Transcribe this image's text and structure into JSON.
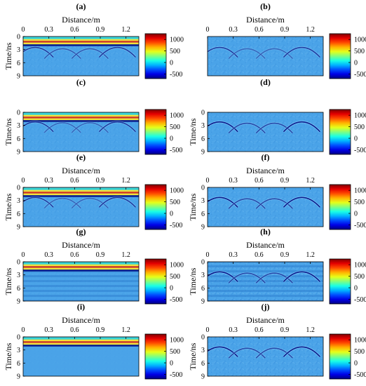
{
  "figure": {
    "rows": 5,
    "columns": 2,
    "colors": {
      "background": "#4aa3e8",
      "speckle_light": "#7cc4f4",
      "speckle_dark": "#2f86d6",
      "hyperbola": "#0a1a8c",
      "hyperbola_halo": "#9fe0ff",
      "band_red": "#d9381e",
      "band_yellow": "#f2e23a",
      "band_cyan": "#39d6d6",
      "band_navy": "#0b1a8a",
      "horizontal_stripe": "#2f7fd0"
    }
  },
  "chart_data": [
    {
      "type": "heatmap",
      "panel_label": "(a)",
      "xlabel": "Distance/m",
      "ylabel": "Time/ns",
      "x_ticks": [
        "0",
        "0.3",
        "0.6",
        "0.9",
        "1.2"
      ],
      "y_ticks": [
        "0",
        "3",
        "6",
        "9"
      ],
      "xlim": [
        0,
        1.35
      ],
      "ylim": [
        9,
        0
      ],
      "colorbar": {
        "min": -700,
        "max": 1250,
        "ticks": [
          "1000",
          "500",
          "0",
          "-500"
        ]
      },
      "direct_wave": true,
      "horizontal_stripes": false,
      "noise": 0.25,
      "hyperbolas": [
        {
          "x": 0.14,
          "t": 2.5,
          "strength": 0.8
        },
        {
          "x": 0.46,
          "t": 2.8,
          "strength": 0.6
        },
        {
          "x": 0.78,
          "t": 2.8,
          "strength": 0.6
        },
        {
          "x": 1.1,
          "t": 2.5,
          "strength": 0.8
        }
      ]
    },
    {
      "type": "heatmap",
      "panel_label": "(b)",
      "xlabel": "Distance/m",
      "ylabel": "",
      "x_ticks": [
        "0",
        "0.3",
        "0.6",
        "0.9",
        "1.2"
      ],
      "y_ticks": [],
      "xlim": [
        0,
        1.35
      ],
      "ylim": [
        9,
        0
      ],
      "colorbar": {
        "min": -700,
        "max": 1250,
        "ticks": [
          "1000",
          "500",
          "0",
          "-500"
        ]
      },
      "direct_wave": false,
      "horizontal_stripes": false,
      "noise": 0.35,
      "hyperbolas": [
        {
          "x": 0.14,
          "t": 2.5,
          "strength": 0.8
        },
        {
          "x": 0.46,
          "t": 2.8,
          "strength": 0.5
        },
        {
          "x": 0.78,
          "t": 2.8,
          "strength": 0.5
        },
        {
          "x": 1.1,
          "t": 2.5,
          "strength": 0.8
        }
      ]
    },
    {
      "type": "heatmap",
      "panel_label": "(c)",
      "xlabel": "",
      "ylabel": "Time/ns",
      "x_ticks": [],
      "y_ticks": [
        "0",
        "3",
        "6",
        "9"
      ],
      "xlim": [
        0,
        1.35
      ],
      "ylim": [
        9,
        0
      ],
      "colorbar": {
        "min": -700,
        "max": 1250,
        "ticks": [
          "1000",
          "500",
          "0",
          "-500"
        ]
      },
      "direct_wave": true,
      "horizontal_stripes": false,
      "noise": 0.25,
      "hyperbolas": [
        {
          "x": 0.14,
          "t": 2.2,
          "strength": 0.8
        },
        {
          "x": 0.46,
          "t": 2.4,
          "strength": 0.5
        },
        {
          "x": 0.78,
          "t": 2.4,
          "strength": 0.5
        },
        {
          "x": 1.1,
          "t": 2.2,
          "strength": 0.8
        }
      ]
    },
    {
      "type": "heatmap",
      "panel_label": "(d)",
      "xlabel": "",
      "ylabel": "Time/ns",
      "x_ticks": [],
      "y_ticks": [
        "0",
        "3",
        "6",
        "9"
      ],
      "xlim": [
        0,
        1.35
      ],
      "ylim": [
        9,
        0
      ],
      "colorbar": {
        "min": -700,
        "max": 1250,
        "ticks": [
          "1000",
          "500",
          "0",
          "-500"
        ]
      },
      "direct_wave": false,
      "horizontal_stripes": false,
      "noise": 0.35,
      "hyperbolas": [
        {
          "x": 0.14,
          "t": 2.2,
          "strength": 1.0
        },
        {
          "x": 0.46,
          "t": 2.5,
          "strength": 0.7
        },
        {
          "x": 0.78,
          "t": 2.5,
          "strength": 0.7
        },
        {
          "x": 1.1,
          "t": 2.2,
          "strength": 1.0
        }
      ]
    },
    {
      "type": "heatmap",
      "panel_label": "(e)",
      "xlabel": "Distance/m",
      "ylabel": "Time/ns",
      "x_ticks": [
        "0",
        "0.3",
        "0.6",
        "0.9",
        "1.2"
      ],
      "y_ticks": [
        "0",
        "3",
        "6",
        "9"
      ],
      "xlim": [
        0,
        1.35
      ],
      "ylim": [
        9,
        0
      ],
      "colorbar": {
        "min": -700,
        "max": 1250,
        "ticks": [
          "1000",
          "500",
          "0",
          "-500"
        ]
      },
      "direct_wave": true,
      "horizontal_stripes": false,
      "noise": 0.25,
      "hyperbolas": [
        {
          "x": 0.14,
          "t": 2.3,
          "strength": 0.8
        },
        {
          "x": 0.46,
          "t": 2.5,
          "strength": 0.5
        },
        {
          "x": 0.78,
          "t": 2.5,
          "strength": 0.5
        },
        {
          "x": 1.1,
          "t": 2.3,
          "strength": 0.8
        }
      ]
    },
    {
      "type": "heatmap",
      "panel_label": "(f)",
      "xlabel": "Distance/m",
      "ylabel": "Time/ns",
      "x_ticks": [
        "0",
        "0.3",
        "0.6",
        "0.9",
        "1.2"
      ],
      "y_ticks": [
        "0",
        "3",
        "6",
        "9"
      ],
      "xlim": [
        0,
        1.35
      ],
      "ylim": [
        9,
        0
      ],
      "colorbar": {
        "min": -700,
        "max": 1250,
        "ticks": [
          "1000",
          "500",
          "0",
          "-500"
        ]
      },
      "direct_wave": false,
      "horizontal_stripes": false,
      "noise": 0.35,
      "hyperbolas": [
        {
          "x": 0.14,
          "t": 2.3,
          "strength": 1.0
        },
        {
          "x": 0.46,
          "t": 2.6,
          "strength": 0.7
        },
        {
          "x": 0.78,
          "t": 2.6,
          "strength": 0.7
        },
        {
          "x": 1.1,
          "t": 2.3,
          "strength": 1.0
        }
      ]
    },
    {
      "type": "heatmap",
      "panel_label": "(g)",
      "xlabel": "Distance/m",
      "ylabel": "Time/ns",
      "x_ticks": [
        "0",
        "0.3",
        "0.6",
        "0.9",
        "1.2"
      ],
      "y_ticks": [
        "0",
        "3",
        "6",
        "9"
      ],
      "xlim": [
        0,
        1.35
      ],
      "ylim": [
        9,
        0
      ],
      "colorbar": {
        "min": -700,
        "max": 1250,
        "ticks": [
          "1000",
          "500",
          "0",
          "-500"
        ]
      },
      "direct_wave": true,
      "horizontal_stripes": true,
      "noise": 0.1,
      "hyperbolas": []
    },
    {
      "type": "heatmap",
      "panel_label": "(h)",
      "xlabel": "Distance/m",
      "ylabel": "Time/ns",
      "x_ticks": [
        "0",
        "0.3",
        "0.6",
        "0.9",
        "1.2"
      ],
      "y_ticks": [
        "0",
        "3",
        "6",
        "9"
      ],
      "xlim": [
        0,
        1.35
      ],
      "ylim": [
        9,
        0
      ],
      "colorbar": {
        "min": -700,
        "max": 1250,
        "ticks": [
          "1000",
          "500",
          "0",
          "-500"
        ]
      },
      "direct_wave": false,
      "horizontal_stripes": true,
      "noise": 0.4,
      "hyperbolas": [
        {
          "x": 0.14,
          "t": 2.3,
          "strength": 1.0
        },
        {
          "x": 0.46,
          "t": 2.6,
          "strength": 0.7
        },
        {
          "x": 0.78,
          "t": 2.6,
          "strength": 0.7
        },
        {
          "x": 1.1,
          "t": 2.3,
          "strength": 1.0
        }
      ]
    },
    {
      "type": "heatmap",
      "panel_label": "(i)",
      "xlabel": "Distance/m",
      "ylabel": "Time/ns",
      "x_ticks": [
        "0",
        "0.3",
        "0.6",
        "0.9",
        "1.2"
      ],
      "y_ticks": [
        "0",
        "3",
        "6",
        "9"
      ],
      "xlim": [
        0,
        1.35
      ],
      "ylim": [
        9,
        0
      ],
      "colorbar": {
        "min": -700,
        "max": 1250,
        "ticks": [
          "1000",
          "500",
          "0",
          "-500"
        ]
      },
      "direct_wave": true,
      "horizontal_stripes": false,
      "noise": 0.05,
      "hyperbolas": []
    },
    {
      "type": "heatmap",
      "panel_label": "(j)",
      "xlabel": "Distance/m",
      "ylabel": "Time/ns",
      "x_ticks": [
        "0",
        "0.3",
        "0.6",
        "0.9",
        "1.2"
      ],
      "y_ticks": [
        "0",
        "3",
        "6",
        "9"
      ],
      "xlim": [
        0,
        1.35
      ],
      "ylim": [
        9,
        0
      ],
      "colorbar": {
        "min": -700,
        "max": 1250,
        "ticks": [
          "1000",
          "500",
          "0",
          "-500"
        ]
      },
      "direct_wave": false,
      "horizontal_stripes": false,
      "noise": 0.4,
      "hyperbolas": [
        {
          "x": 0.14,
          "t": 2.3,
          "strength": 1.0
        },
        {
          "x": 0.46,
          "t": 2.6,
          "strength": 0.7
        },
        {
          "x": 0.78,
          "t": 2.6,
          "strength": 0.7
        },
        {
          "x": 1.1,
          "t": 2.3,
          "strength": 1.0
        }
      ]
    }
  ]
}
